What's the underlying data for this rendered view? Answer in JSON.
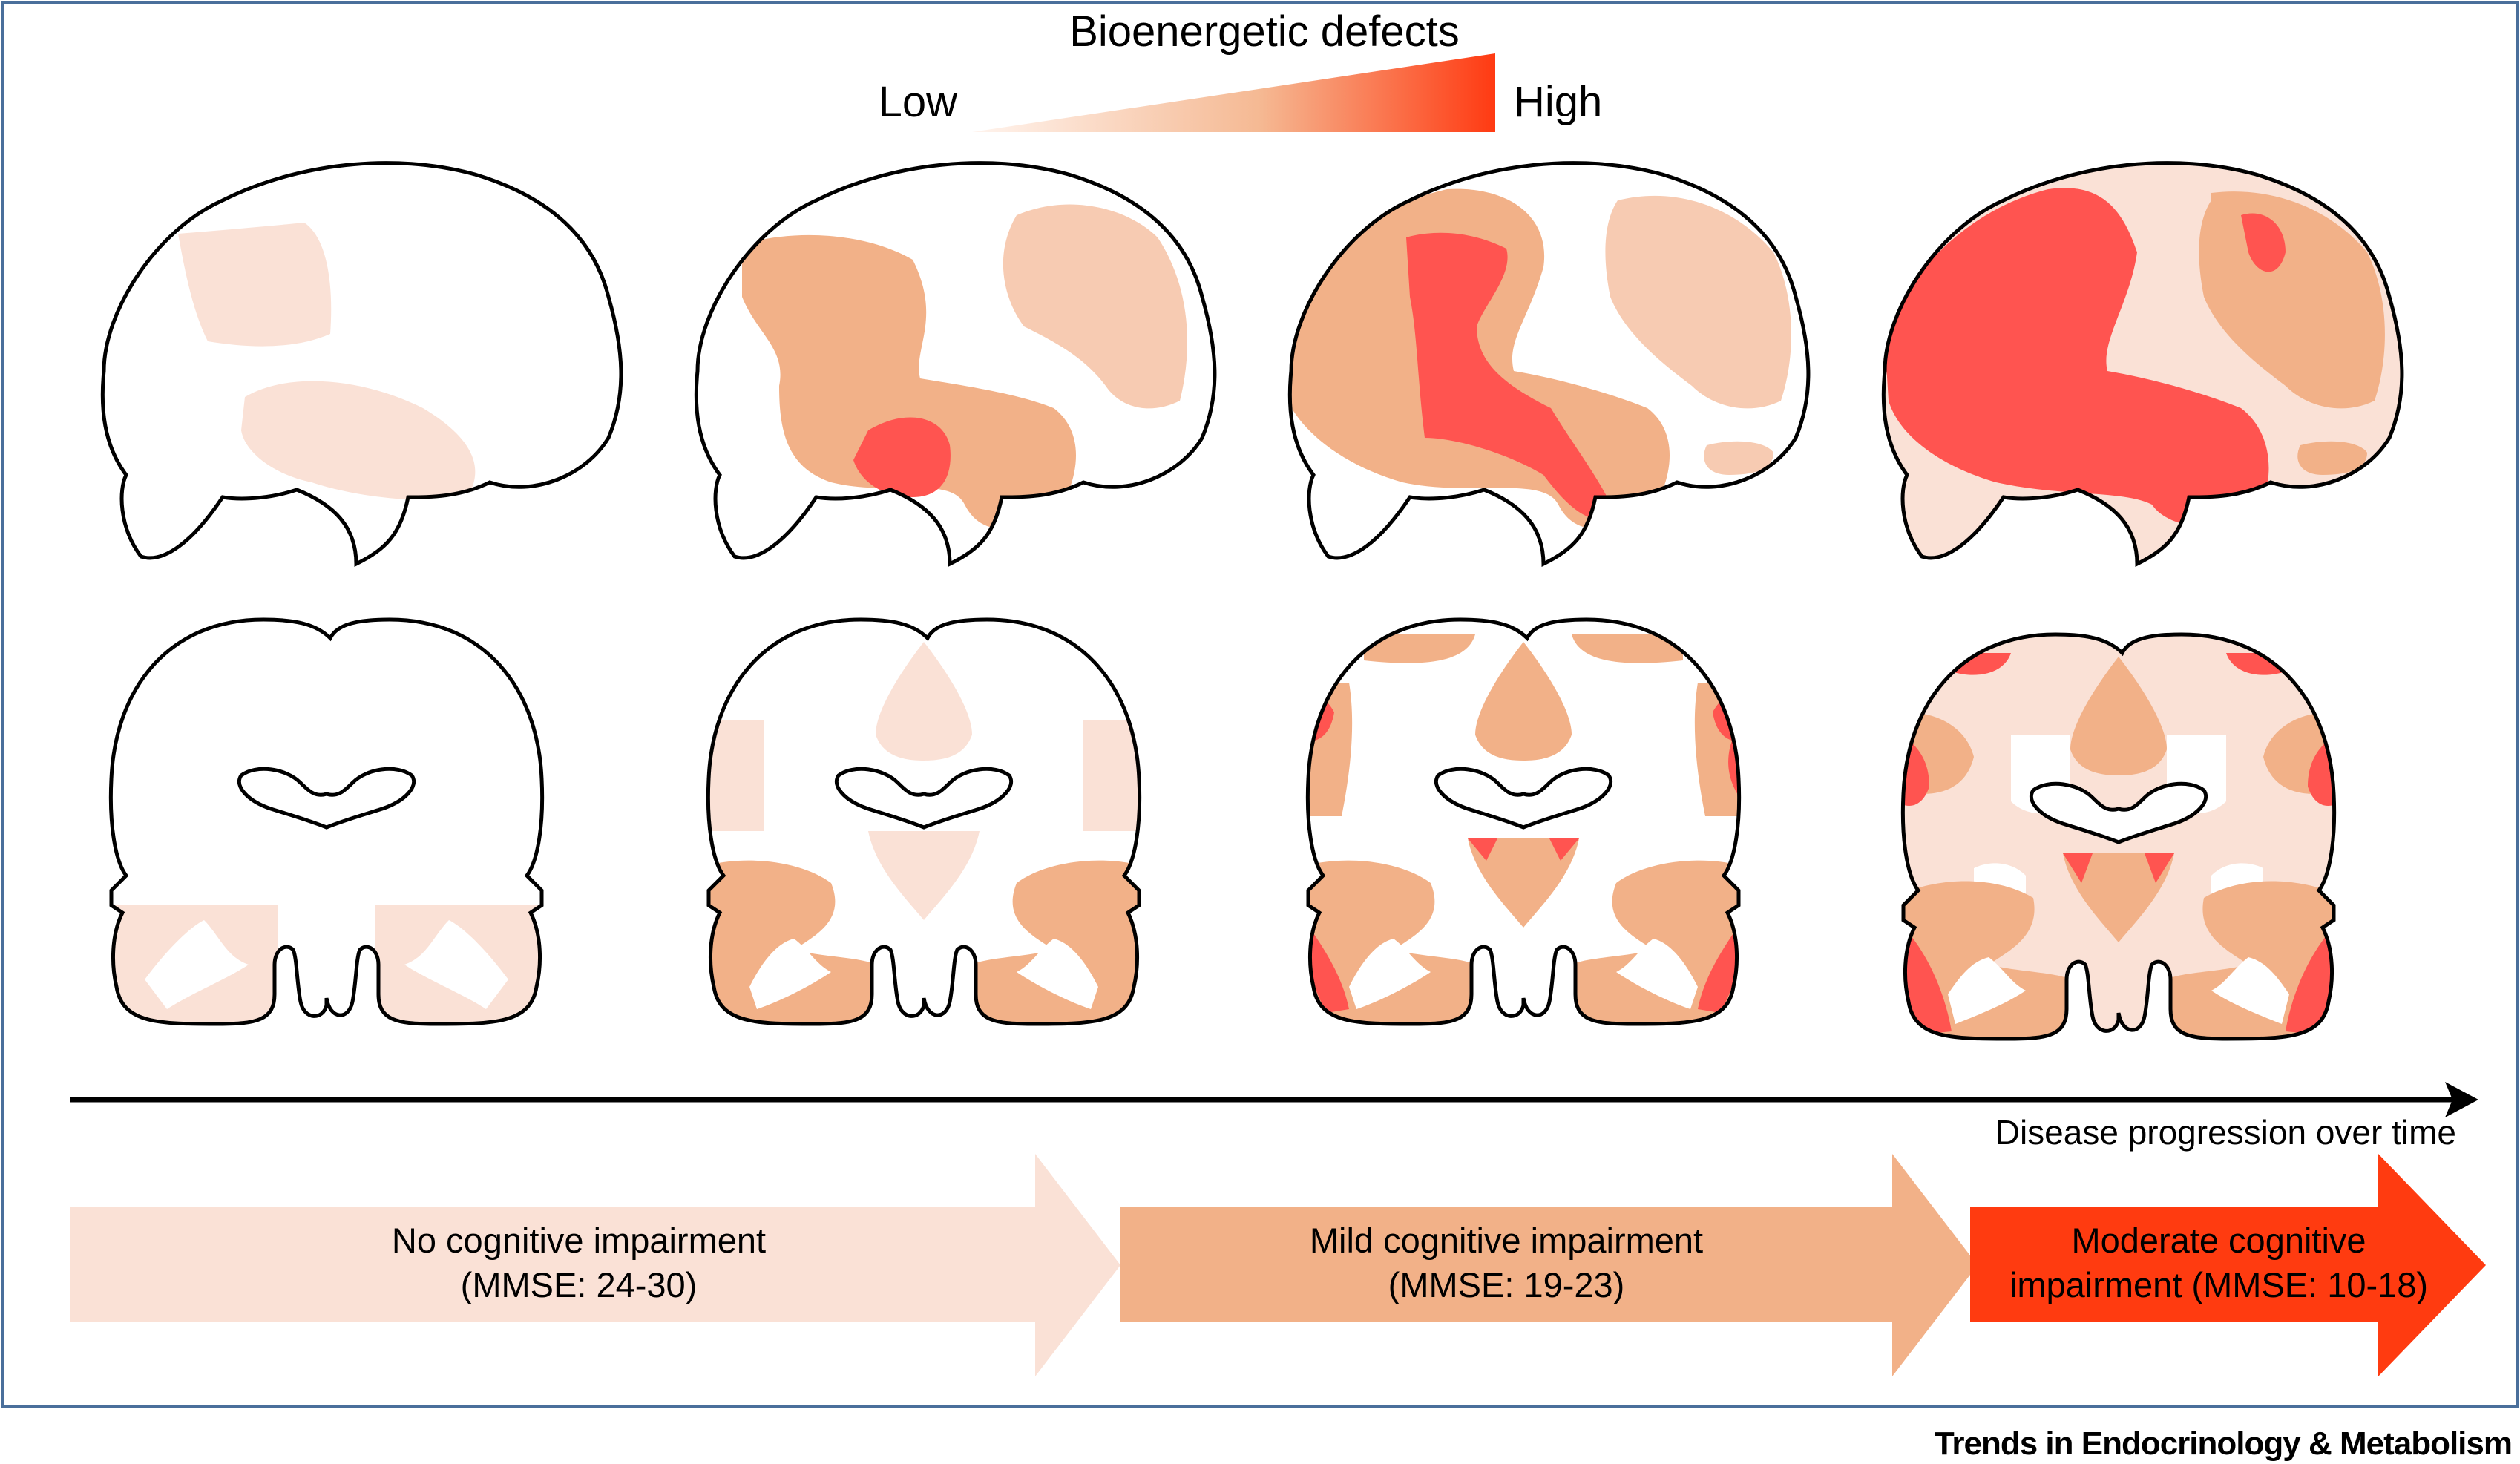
{
  "legend": {
    "title": "Bioenergetic defects",
    "low_label": "Low",
    "high_label": "High"
  },
  "timeline": {
    "label": "Disease progression over time"
  },
  "stages": [
    {
      "line1": "No cognitive impairment",
      "line2": "(MMSE: 24-30)"
    },
    {
      "line1": "Mild cognitive impairment",
      "line2": "(MMSE: 19-23)"
    },
    {
      "line1": "Moderate cognitive",
      "line2": "impairment (MMSE: 10-18)"
    }
  ],
  "journal": "Trends in Endocrinology & Metabolism",
  "colors": {
    "low": "#fae1d6",
    "medium": "#f2b188",
    "high": "#ff5450",
    "light_mid": "#f7cbb2",
    "arrow_high": "#ff3b10",
    "frame": "#4a6f9b"
  }
}
